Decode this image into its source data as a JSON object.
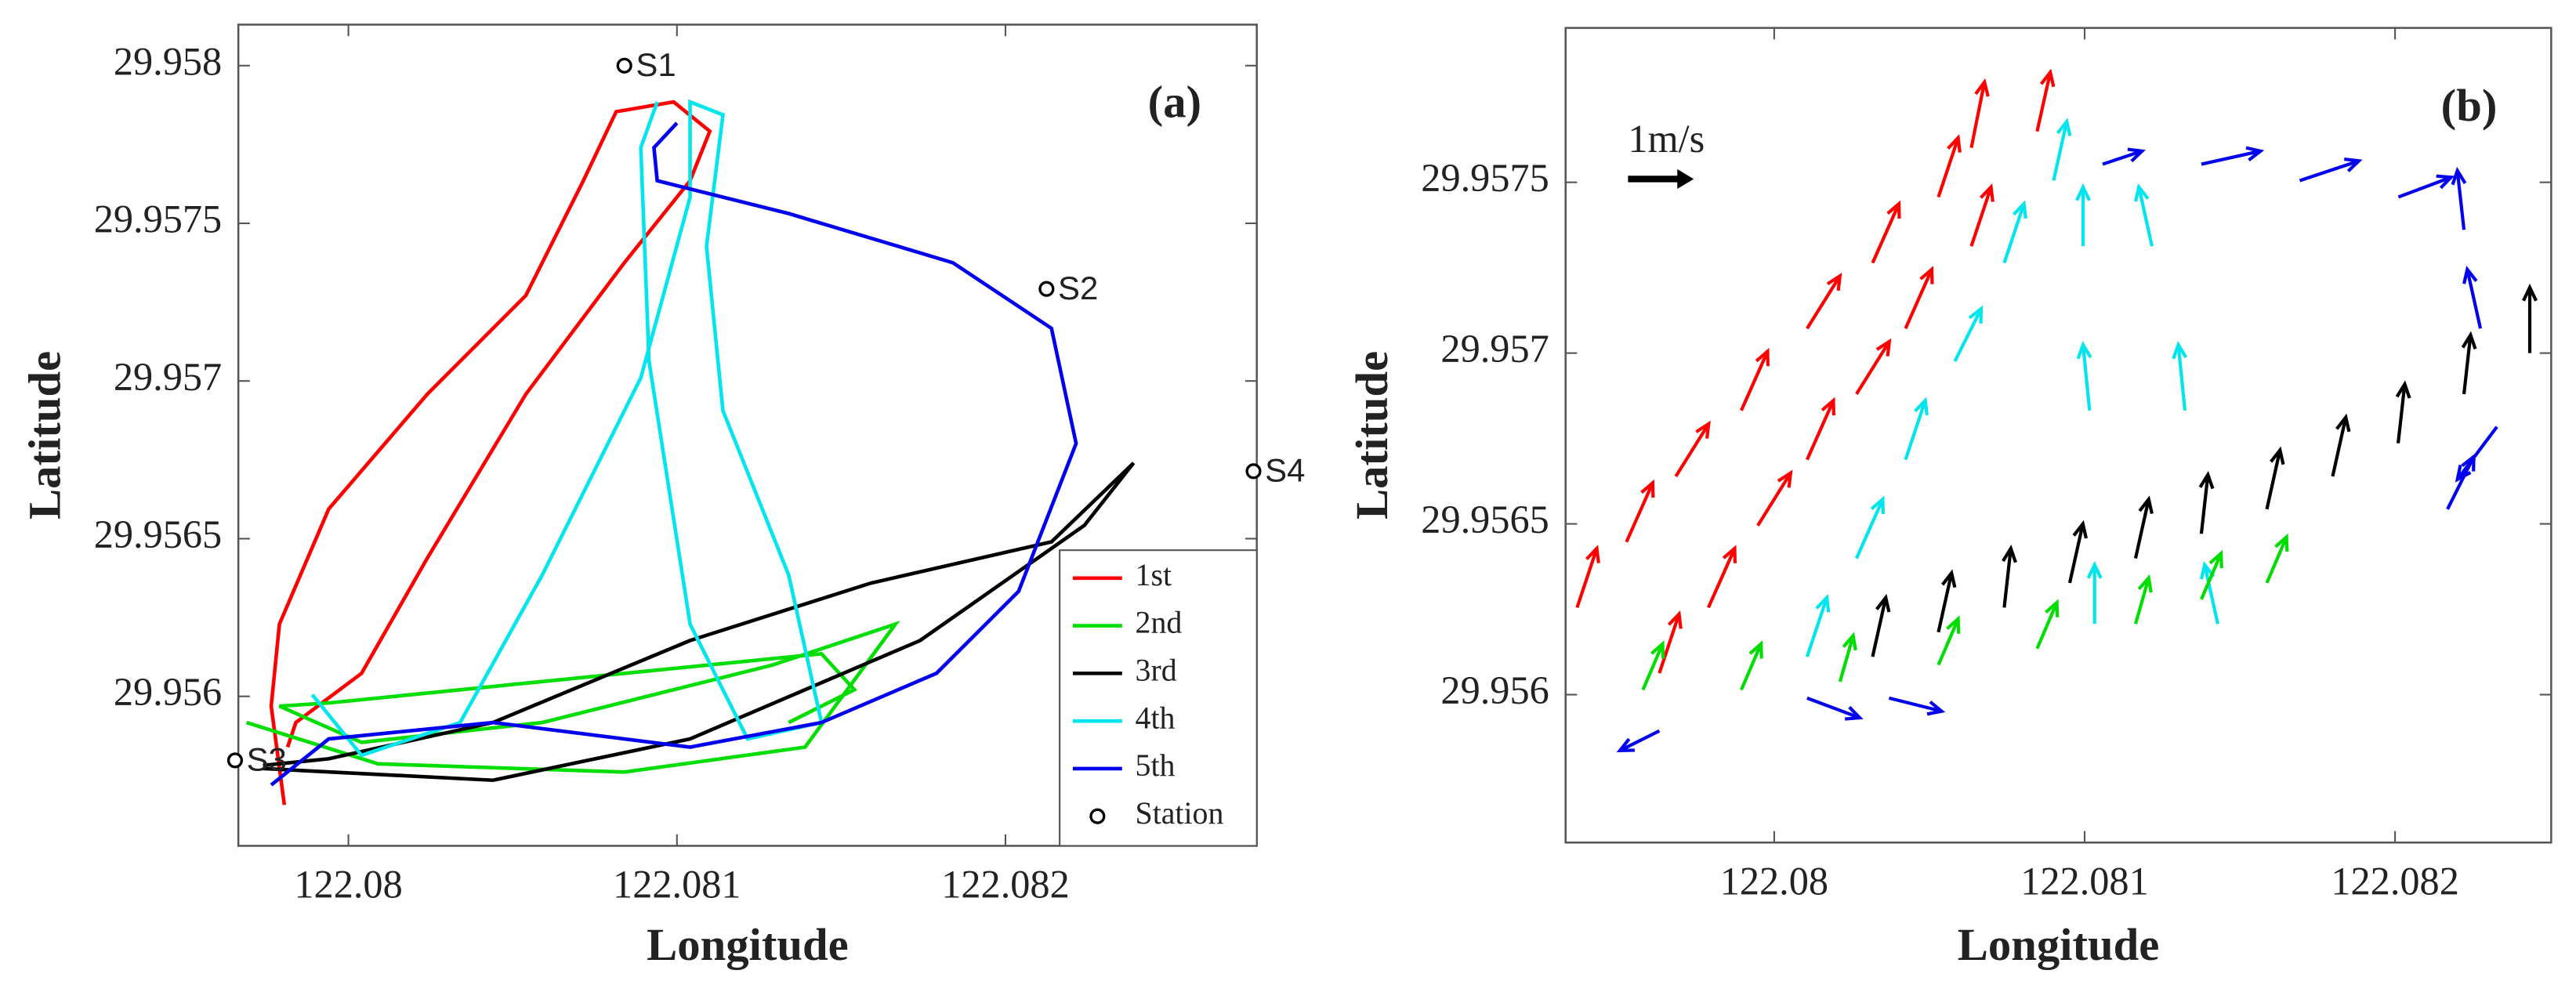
{
  "chart_data": [
    {
      "type": "line",
      "title": "(a)",
      "xlabel": "Longitude",
      "ylabel": "Latitude",
      "xlim": [
        122.079665,
        122.082765
      ],
      "ylim": [
        29.955526,
        29.95813
      ],
      "xticks": [
        122.08,
        122.081,
        122.082
      ],
      "yticks": [
        29.956,
        29.9565,
        29.957,
        29.9575,
        29.958
      ],
      "legend": "lower right",
      "series": [
        {
          "name": "1st",
          "color": "#ff0000",
          "x": [
            122.079805,
            122.079765,
            122.07979,
            122.07994,
            122.08024,
            122.08054,
            122.080715,
            122.080815,
            122.08099,
            122.0811,
            122.08104,
            122.08084,
            122.08054,
            122.08024,
            122.08004,
            122.07984,
            122.079815
          ],
          "y": [
            29.955656,
            29.955969,
            29.956229,
            29.956594,
            29.956958,
            29.957271,
            29.957635,
            29.957854,
            29.957885,
            29.957792,
            29.957635,
            29.957375,
            29.956958,
            29.956438,
            29.956073,
            29.955917,
            29.955839
          ]
        },
        {
          "name": "2nd",
          "color": "#00dd00",
          "x": [
            122.07969,
            122.08009,
            122.08084,
            122.08139,
            122.081665,
            122.08129,
            122.08059,
            122.08004,
            122.07979,
            122.07994,
            122.08059,
            122.08144,
            122.08154,
            122.08134
          ],
          "y": [
            29.955917,
            29.955786,
            29.95576,
            29.955839,
            29.956229,
            29.956099,
            29.955917,
            29.955854,
            29.955969,
            29.955979,
            29.956047,
            29.956135,
            29.956021,
            29.955917
          ]
        },
        {
          "name": "3rd",
          "color": "#000000",
          "x": [
            122.07974,
            122.08044,
            122.08104,
            122.08174,
            122.08224,
            122.08239,
            122.08214,
            122.08159,
            122.08104,
            122.08044,
            122.07994,
            122.07974
          ],
          "y": [
            29.955771,
            29.955734,
            29.955865,
            29.956177,
            29.956542,
            29.95674,
            29.95649,
            29.956359,
            29.956177,
            29.955917,
            29.955802,
            29.955781
          ]
        },
        {
          "name": "4th",
          "color": "#00e5ee",
          "x": [
            122.07989,
            122.08004,
            122.08034,
            122.08059,
            122.08089,
            122.08104,
            122.08104,
            122.08114,
            122.08109,
            122.08114,
            122.08134,
            122.08144,
            122.081215,
            122.08104,
            122.080915,
            122.08089,
            122.08094
          ],
          "y": [
            29.956005,
            29.955813,
            29.955917,
            29.956385,
            29.95701,
            29.957583,
            29.957885,
            29.957844,
            29.957427,
            29.956906,
            29.956385,
            29.955917,
            29.955865,
            29.956229,
            29.957063,
            29.95774,
            29.957885
          ]
        },
        {
          "name": "5th",
          "color": "#0000ee",
          "x": [
            122.079765,
            122.07994,
            122.08044,
            122.08104,
            122.08144,
            122.08179,
            122.08204,
            122.082215,
            122.08214,
            122.08184,
            122.08134,
            122.08094,
            122.08093,
            122.081
          ],
          "y": [
            29.955719,
            29.955865,
            29.955917,
            29.955839,
            29.955917,
            29.956073,
            29.956333,
            29.956802,
            29.957167,
            29.957375,
            29.957531,
            29.957635,
            29.95774,
            29.957818
          ]
        }
      ],
      "stations": {
        "name": "Station",
        "labels": [
          "S1",
          "S2",
          "S3",
          "S4"
        ],
        "x": [
          122.08084,
          122.082125,
          122.079655,
          122.082755
        ],
        "y": [
          29.958,
          29.957292,
          29.955797,
          29.956714
        ]
      }
    },
    {
      "type": "quiver",
      "title": "(b)",
      "xlabel": "Longitude",
      "ylabel": "Latitude",
      "xlim": [
        122.079328,
        122.082503
      ],
      "ylim": [
        29.955567,
        29.957952
      ],
      "xticks": [
        122.08,
        122.081,
        122.082
      ],
      "yticks": [
        29.956,
        29.9565,
        29.957,
        29.9575
      ],
      "key": {
        "label": "1m/s",
        "value": 1
      },
      "series": [
        {
          "color": "#ff0000",
          "x": [
            122.079365,
            122.079524,
            122.079683,
            122.079894,
            122.080106,
            122.080317,
            122.080529,
            122.080635,
            122.07963,
            122.079788,
            122.079947,
            122.080106,
            122.080265,
            122.080423,
            122.080635,
            122.080847
          ],
          "y": [
            29.956255,
            29.956447,
            29.956639,
            29.956832,
            29.957072,
            29.957264,
            29.957457,
            29.957601,
            29.956063,
            29.956255,
            29.956495,
            29.956688,
            29.95688,
            29.957072,
            29.957313,
            29.957649
          ],
          "u": [
            0.3,
            0.4,
            0.5,
            0.4,
            0.5,
            0.4,
            0.3,
            0.2,
            0.3,
            0.4,
            0.5,
            0.4,
            0.5,
            0.4,
            0.3,
            0.2
          ],
          "v": [
            0.9,
            0.9,
            0.8,
            0.9,
            0.8,
            0.9,
            0.9,
            1.0,
            0.9,
            0.9,
            0.8,
            0.9,
            0.8,
            0.9,
            0.9,
            0.9
          ]
        },
        {
          "color": "#00e5ee",
          "x": [
            122.080106,
            122.080265,
            122.080423,
            122.080582,
            122.080741,
            122.0809,
            122.080995,
            122.081016,
            122.081032,
            122.081217,
            122.081323,
            122.081429
          ],
          "y": [
            29.956111,
            29.956399,
            29.956688,
            29.956976,
            29.957264,
            29.957505,
            29.957313,
            29.956832,
            29.956207,
            29.957313,
            29.956832,
            29.956207
          ],
          "u": [
            0.3,
            0.4,
            0.3,
            0.4,
            0.3,
            0.2,
            0.0,
            -0.1,
            0.0,
            -0.2,
            -0.1,
            -0.2
          ],
          "v": [
            0.9,
            0.9,
            0.9,
            0.8,
            0.9,
            0.9,
            0.9,
            1.0,
            0.9,
            0.9,
            1.0,
            0.9
          ]
        },
        {
          "color": "#0000ee",
          "x": [
            122.07963,
            122.080106,
            122.08037,
            122.081058,
            122.081376,
            122.081693,
            122.082011,
            122.082222,
            122.082275,
            122.082328,
            122.082169
          ],
          "y": [
            29.955894,
            29.95599,
            29.95599,
            29.957553,
            29.957553,
            29.957505,
            29.957457,
            29.957361,
            29.957072,
            29.956784,
            29.956543
          ],
          "u": [
            -0.6,
            0.8,
            0.8,
            0.6,
            0.9,
            0.9,
            0.8,
            -0.1,
            -0.2,
            -0.6,
            0.4
          ],
          "v": [
            -0.3,
            -0.3,
            -0.2,
            0.2,
            0.2,
            0.3,
            0.3,
            0.9,
            0.9,
            -0.8,
            0.8
          ]
        },
        {
          "color": "#000000",
          "x": [
            122.080317,
            122.080529,
            122.080741,
            122.080952,
            122.081164,
            122.081376,
            122.081587,
            122.081799,
            122.08201,
            122.082222,
            122.082434
          ],
          "y": [
            29.956111,
            29.956183,
            29.956255,
            29.956327,
            29.956399,
            29.956471,
            29.956543,
            29.956639,
            29.956736,
            29.95688,
            29.957
          ],
          "u": [
            0.2,
            0.2,
            0.1,
            0.2,
            0.2,
            0.1,
            0.2,
            0.2,
            0.1,
            0.1,
            0.0
          ],
          "v": [
            0.9,
            0.9,
            0.9,
            0.9,
            0.9,
            0.9,
            0.9,
            0.9,
            0.9,
            0.9,
            1.0
          ]
        },
        {
          "color": "#00dd00",
          "x": [
            122.079577,
            122.079894,
            122.080212,
            122.080529,
            122.080847,
            122.081164,
            122.081376,
            122.081587
          ],
          "y": [
            29.956014,
            29.956014,
            29.956038,
            29.956087,
            29.956135,
            29.956207,
            29.956279,
            29.956327
          ],
          "u": [
            0.3,
            0.3,
            0.2,
            0.3,
            0.3,
            0.2,
            0.3,
            0.3
          ],
          "v": [
            0.7,
            0.7,
            0.7,
            0.7,
            0.7,
            0.7,
            0.7,
            0.7
          ]
        }
      ]
    }
  ]
}
